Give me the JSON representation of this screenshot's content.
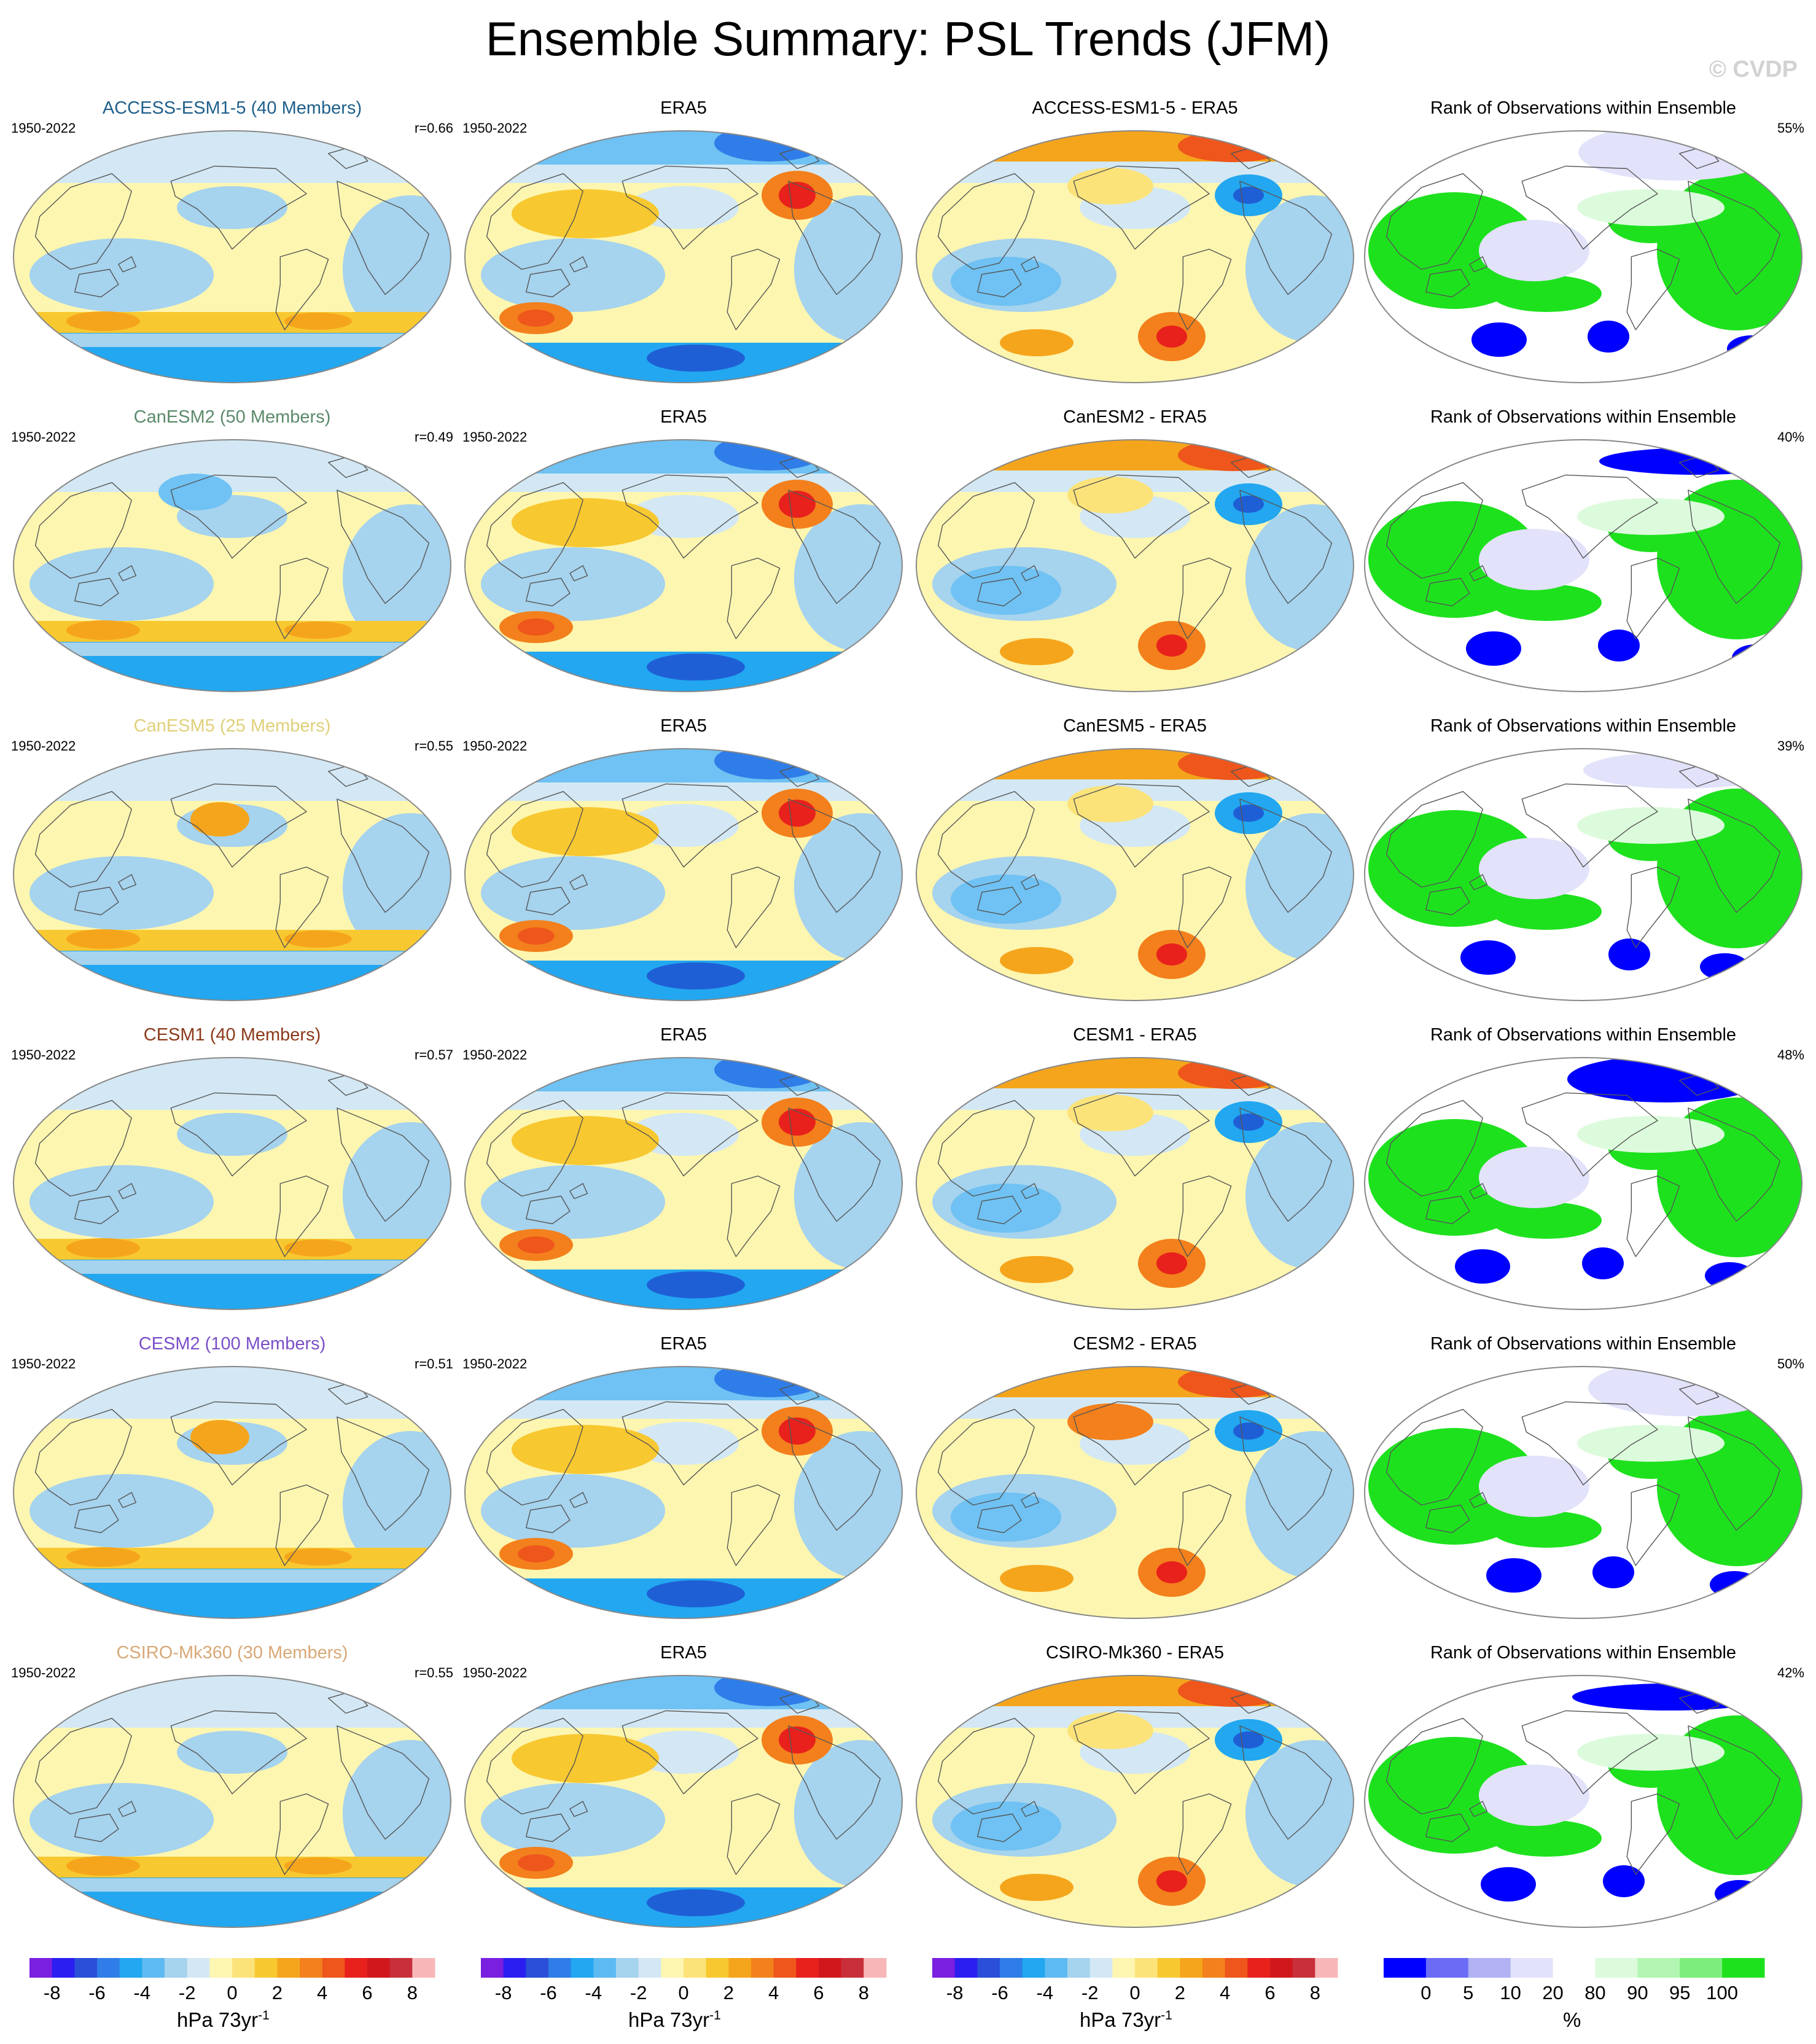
{
  "title": "Ensemble Summary: PSL Trends (JFM)",
  "watermark": "© CVDP",
  "chart_data": {
    "type": "heatmap",
    "rows": [
      {
        "model_title": "ACCESS-ESM1-5 (40 Members)",
        "model_color": "#1f5f8b",
        "period": "1950-2022",
        "r": "r=0.66",
        "obs_title": "ERA5",
        "obs_period": "1950-2022",
        "diff_title": "ACCESS-ESM1-5 - ERA5",
        "rank_title": "Rank of Observations within Ensemble",
        "rank_pct": "55%"
      },
      {
        "model_title": "CanESM2 (50 Members)",
        "model_color": "#5b8a6a",
        "period": "1950-2022",
        "r": "r=0.49",
        "obs_title": "ERA5",
        "obs_period": "1950-2022",
        "diff_title": "CanESM2 - ERA5",
        "rank_title": "Rank of Observations within Ensemble",
        "rank_pct": "40%"
      },
      {
        "model_title": "CanESM5 (25 Members)",
        "model_color": "#e0d07a",
        "period": "1950-2022",
        "r": "r=0.55",
        "obs_title": "ERA5",
        "obs_period": "1950-2022",
        "diff_title": "CanESM5 - ERA5",
        "rank_title": "Rank of Observations within Ensemble",
        "rank_pct": "39%"
      },
      {
        "model_title": "CESM1 (40 Members)",
        "model_color": "#8b3a1a",
        "period": "1950-2022",
        "r": "r=0.57",
        "obs_title": "ERA5",
        "obs_period": "1950-2022",
        "diff_title": "CESM1 - ERA5",
        "rank_title": "Rank of Observations within Ensemble",
        "rank_pct": "48%"
      },
      {
        "model_title": "CESM2 (100 Members)",
        "model_color": "#7a4fc8",
        "period": "1950-2022",
        "r": "r=0.51",
        "obs_title": "ERA5",
        "obs_period": "1950-2022",
        "diff_title": "CESM2 - ERA5",
        "rank_title": "Rank of Observations within Ensemble",
        "rank_pct": "50%"
      },
      {
        "model_title": "CSIRO-Mk360 (30 Members)",
        "model_color": "#d8a878",
        "period": "1950-2022",
        "r": "r=0.55",
        "obs_title": "ERA5",
        "obs_period": "1950-2022",
        "diff_title": "CSIRO-Mk360 - ERA5",
        "rank_title": "Rank of Observations within Ensemble",
        "rank_pct": "42%"
      }
    ],
    "trend_colorbar": {
      "tick_labels": [
        "-8",
        "-6",
        "-4",
        "-2",
        "0",
        "2",
        "4",
        "6",
        "8"
      ],
      "tick_values": [
        -8,
        -6,
        -4,
        -2,
        0,
        2,
        4,
        6,
        8
      ],
      "range": [
        -9,
        9
      ],
      "colors": [
        "#7a1fe0",
        "#2a1ff0",
        "#2b4fd8",
        "#2f7de8",
        "#22a7f0",
        "#5ebaf2",
        "#a6d3ee",
        "#d3e8f4",
        "#fdf6b0",
        "#fbe37a",
        "#f8c830",
        "#f5a51c",
        "#f3801c",
        "#ee561c",
        "#e8211c",
        "#d0181c",
        "#c82f3a",
        "#f7b7b8"
      ],
      "unit": "hPa 73yr",
      "unit_exp": "-1"
    },
    "rank_colorbar": {
      "tick_labels": [
        "0",
        "5",
        "10",
        "20",
        "80",
        "90",
        "95",
        "100"
      ],
      "colors": [
        "#0000ff",
        "#6b6bf5",
        "#b1b1f3",
        "#e2e2fb",
        "#ffffff",
        "#dcfbdc",
        "#b3f6b3",
        "#7cee7c",
        "#1ee11e"
      ],
      "unit": "%"
    }
  }
}
